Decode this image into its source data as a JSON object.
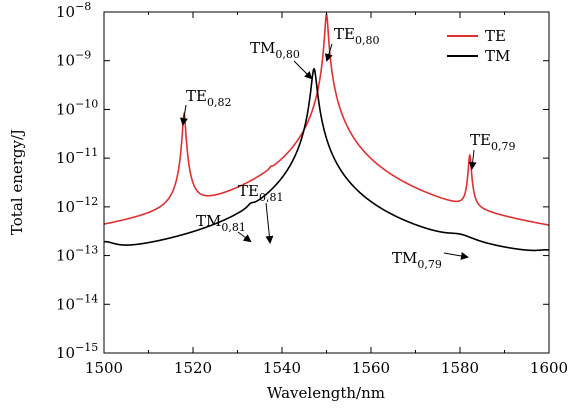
{
  "chart_data": {
    "type": "line",
    "xlabel": "Wavelength/nm",
    "ylabel": "Total energy/J",
    "xlim": [
      1500,
      1600
    ],
    "ylim_exponents": [
      -15,
      -8
    ],
    "y_scale": "log",
    "x_ticks": [
      1500,
      1520,
      1540,
      1560,
      1580,
      1600
    ],
    "y_ticks": [
      {
        "base": "10",
        "exp": "−15",
        "value": -15
      },
      {
        "base": "10",
        "exp": "−14",
        "value": -14
      },
      {
        "base": "10",
        "exp": "−13",
        "value": -13
      },
      {
        "base": "10",
        "exp": "−12",
        "value": -12
      },
      {
        "base": "10",
        "exp": "−11",
        "value": -11
      },
      {
        "base": "10",
        "exp": "−10",
        "value": -10
      },
      {
        "base": "10",
        "exp": "−9",
        "value": -9
      },
      {
        "base": "10",
        "exp": "−8",
        "value": -8
      }
    ],
    "grid": false,
    "legend_position": "top-right",
    "series": [
      {
        "name": "TE",
        "color": "#e03030",
        "background": 2.6e-14,
        "peaks": [
          {
            "center": 1518.0,
            "amplitude": 8e-11,
            "width": 0.32
          },
          {
            "center": 1537.5,
            "amplitude": 5e-13,
            "width": 0.3
          },
          {
            "center": 1550.0,
            "amplitude": 9e-09,
            "width": 0.33
          },
          {
            "center": 1582.2,
            "amplitude": 1.05e-11,
            "width": 0.32
          }
        ]
      },
      {
        "name": "TM",
        "color": "#000000",
        "background": 3e-14,
        "peaks": [
          {
            "center": 1500.0,
            "amplitude": 7e-14,
            "width": 3.0
          },
          {
            "center": 1533.0,
            "amplitude": 1.5e-13,
            "width": 0.8
          },
          {
            "center": 1547.2,
            "amplitude": 6.8e-10,
            "width": 0.55
          },
          {
            "center": 1580.0,
            "amplitude": 5.5e-14,
            "width": 3.5
          },
          {
            "center": 1600.0,
            "amplitude": 2.5e-14,
            "width": 3.0
          }
        ]
      }
    ],
    "annotations": [
      {
        "name": "TE",
        "sub": "0,82",
        "x": 1518.0,
        "y": 8e-11
      },
      {
        "name": "TM",
        "sub": "0,81",
        "x": 1533.0,
        "y": 1.8e-13
      },
      {
        "name": "TE",
        "sub": "0,81",
        "x": 1537.5,
        "y": 4.8e-13
      },
      {
        "name": "TM",
        "sub": "0,80",
        "x": 1547.2,
        "y": 6.5e-10
      },
      {
        "name": "TE",
        "sub": "0,80",
        "x": 1550.0,
        "y": 7e-09
      },
      {
        "name": "TM",
        "sub": "0,79",
        "x": 1579.0,
        "y": 9e-14
      },
      {
        "name": "TE",
        "sub": "0,79",
        "x": 1582.2,
        "y": 1.05e-11
      }
    ]
  }
}
